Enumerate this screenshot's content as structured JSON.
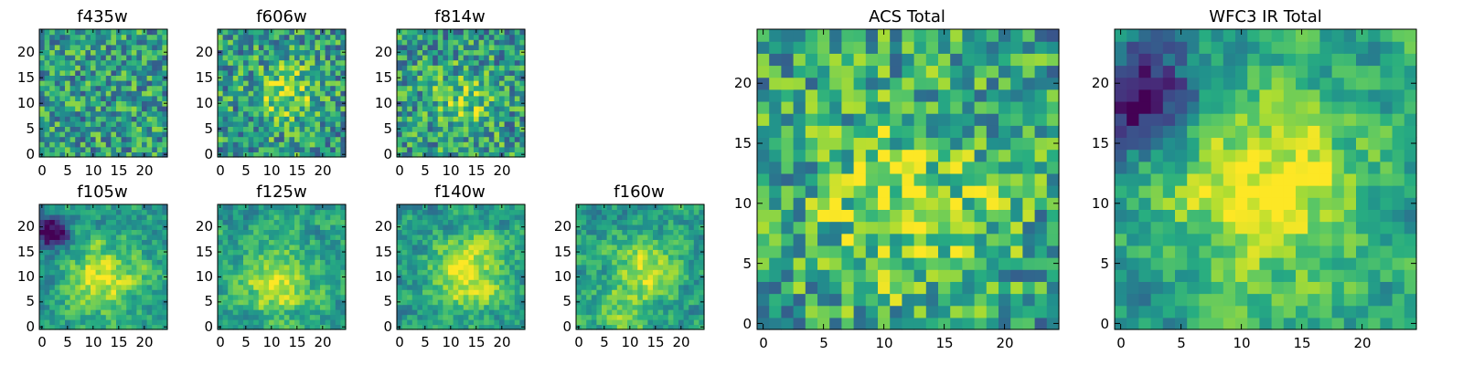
{
  "chart_data": [
    {
      "type": "heatmap",
      "id": "f435w",
      "title": "f435w",
      "grid_size": 25,
      "xticks": [
        0,
        5,
        10,
        15,
        20
      ],
      "yticks": [
        0,
        5,
        10,
        15,
        20
      ],
      "xlim": [
        -0.5,
        24.5
      ],
      "ylim": [
        -0.5,
        24.5
      ],
      "colormap": "viridis",
      "seed": 435,
      "pattern": "noise",
      "blobs": []
    },
    {
      "type": "heatmap",
      "id": "f606w",
      "title": "f606w",
      "grid_size": 25,
      "xticks": [
        0,
        5,
        10,
        15,
        20
      ],
      "yticks": [
        0,
        5,
        10,
        15,
        20
      ],
      "xlim": [
        -0.5,
        24.5
      ],
      "ylim": [
        -0.5,
        24.5
      ],
      "colormap": "viridis",
      "seed": 606,
      "pattern": "noise",
      "blobs": [
        [
          13,
          12,
          4,
          0.3
        ]
      ]
    },
    {
      "type": "heatmap",
      "id": "f814w",
      "title": "f814w",
      "grid_size": 25,
      "xticks": [
        0,
        5,
        10,
        15,
        20
      ],
      "yticks": [
        0,
        5,
        10,
        15,
        20
      ],
      "xlim": [
        -0.5,
        24.5
      ],
      "ylim": [
        -0.5,
        24.5
      ],
      "colormap": "viridis",
      "seed": 814,
      "pattern": "noise",
      "blobs": [
        [
          12,
          10,
          4,
          0.25
        ]
      ]
    },
    {
      "type": "heatmap",
      "id": "f105w",
      "title": "f105w",
      "grid_size": 25,
      "xticks": [
        0,
        5,
        10,
        15,
        20
      ],
      "yticks": [
        0,
        5,
        10,
        15,
        20
      ],
      "xlim": [
        -0.5,
        24.5
      ],
      "ylim": [
        -0.5,
        24.5
      ],
      "colormap": "viridis",
      "seed": 105,
      "pattern": "smooth",
      "blobs": [
        [
          12,
          10,
          5,
          0.4
        ],
        [
          2,
          19,
          2.5,
          -0.6
        ]
      ]
    },
    {
      "type": "heatmap",
      "id": "f125w",
      "title": "f125w",
      "grid_size": 25,
      "xticks": [
        0,
        5,
        10,
        15,
        20
      ],
      "yticks": [
        0,
        5,
        10,
        15,
        20
      ],
      "xlim": [
        -0.5,
        24.5
      ],
      "ylim": [
        -0.5,
        24.5
      ],
      "colormap": "viridis",
      "seed": 125,
      "pattern": "smooth",
      "blobs": [
        [
          11,
          9,
          5,
          0.4
        ]
      ]
    },
    {
      "type": "heatmap",
      "id": "f140w",
      "title": "f140w",
      "grid_size": 25,
      "xticks": [
        0,
        5,
        10,
        15,
        20
      ],
      "yticks": [
        0,
        5,
        10,
        15,
        20
      ],
      "xlim": [
        -0.5,
        24.5
      ],
      "ylim": [
        -0.5,
        24.5
      ],
      "colormap": "viridis",
      "seed": 140,
      "pattern": "smooth",
      "blobs": [
        [
          13,
          11,
          5,
          0.45
        ]
      ]
    },
    {
      "type": "heatmap",
      "id": "f160w",
      "title": "f160w",
      "grid_size": 25,
      "xticks": [
        0,
        5,
        10,
        15,
        20
      ],
      "yticks": [
        0,
        5,
        10,
        15,
        20
      ],
      "xlim": [
        -0.5,
        24.5
      ],
      "ylim": [
        -0.5,
        24.5
      ],
      "colormap": "viridis",
      "seed": 160,
      "pattern": "smooth",
      "blobs": [
        [
          13,
          12,
          4,
          0.4
        ],
        [
          9,
          3,
          4,
          0.25
        ]
      ]
    },
    {
      "type": "heatmap",
      "id": "acs-total",
      "title": "ACS Total",
      "grid_size": 25,
      "xticks": [
        0,
        5,
        10,
        15,
        20
      ],
      "yticks": [
        0,
        5,
        10,
        15,
        20
      ],
      "xlim": [
        -0.5,
        24.5
      ],
      "ylim": [
        -0.5,
        24.5
      ],
      "colormap": "viridis",
      "seed": 11,
      "pattern": "noise",
      "blobs": [
        [
          12,
          10,
          6,
          0.3
        ]
      ]
    },
    {
      "type": "heatmap",
      "id": "wfc3-ir-total",
      "title": "WFC3 IR Total",
      "grid_size": 25,
      "xticks": [
        0,
        5,
        10,
        15,
        20
      ],
      "yticks": [
        0,
        5,
        10,
        15,
        20
      ],
      "xlim": [
        -0.5,
        24.5
      ],
      "ylim": [
        -0.5,
        24.5
      ],
      "colormap": "viridis",
      "seed": 22,
      "pattern": "smooth",
      "blobs": [
        [
          12,
          11,
          6,
          0.45
        ],
        [
          2,
          19,
          3,
          -0.6
        ]
      ]
    }
  ]
}
